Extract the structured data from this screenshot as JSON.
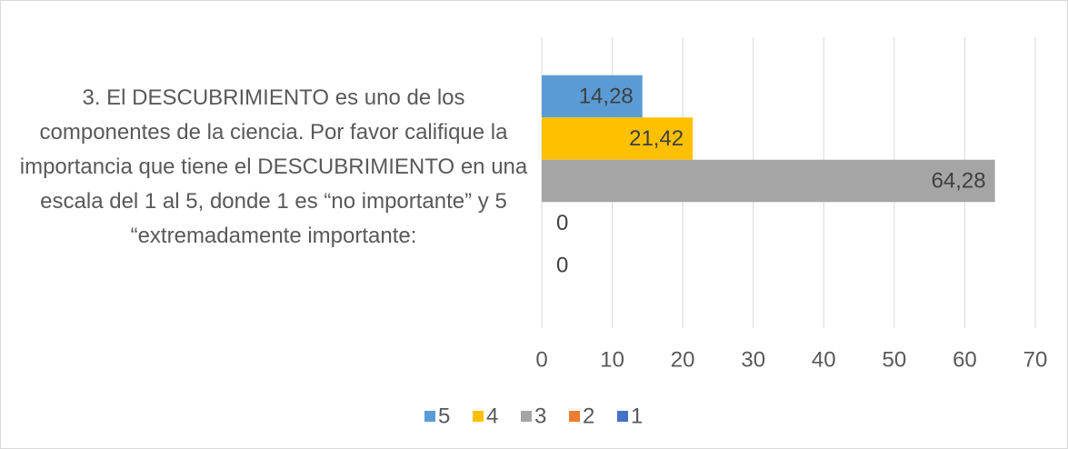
{
  "chart_data": {
    "type": "bar",
    "orientation": "horizontal",
    "categories": [
      "3. El DESCUBRIMIENTO es uno de los componentes de la ciencia. Por favor califique la importancia que tiene el DESCUBRIMIENTO en una escala del 1 al 5, donde 1 es “no importante” y 5 “extremadamente importante:"
    ],
    "series": [
      {
        "name": "5",
        "color": "#5b9bd5",
        "values": [
          14.28
        ],
        "value_labels": [
          "14,28"
        ]
      },
      {
        "name": "4",
        "color": "#ffc000",
        "values": [
          21.42
        ],
        "value_labels": [
          "21,42"
        ]
      },
      {
        "name": "3",
        "color": "#a5a5a5",
        "values": [
          64.28
        ],
        "value_labels": [
          "64,28"
        ]
      },
      {
        "name": "2",
        "color": "#ed7d31",
        "values": [
          0
        ]
      },
      {
        "name": "1",
        "color": "#4472c4",
        "values": [
          0
        ]
      }
    ],
    "xlim": [
      0,
      70
    ],
    "xticks": [
      0,
      10,
      20,
      30,
      40,
      50,
      60,
      70
    ],
    "grid": true,
    "legend": "bottom"
  }
}
